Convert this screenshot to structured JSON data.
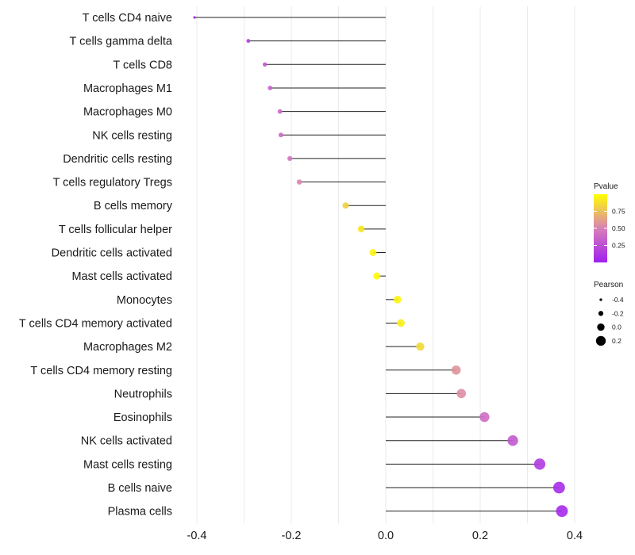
{
  "chart_data": {
    "type": "lollipop",
    "title": "",
    "xlabel": "",
    "ylabel": "",
    "xlim": [
      -0.42,
      0.42
    ],
    "x_ticks": [
      -0.4,
      -0.2,
      0.0,
      0.2,
      0.4
    ],
    "x_tick_labels": [
      "-0.4",
      "-0.2",
      "0.0",
      "0.2",
      "0.4"
    ],
    "minor_grid": [
      -0.3,
      -0.1,
      0.1,
      0.3
    ],
    "grid": true,
    "categories": [
      "T cells CD4 naive",
      "T cells gamma delta",
      "T cells CD8",
      "Macrophages M1",
      "Macrophages M0",
      "NK cells resting",
      "Dendritic cells resting",
      "T cells regulatory  Tregs",
      "B cells memory",
      "T cells follicular helper",
      "Dendritic cells activated",
      "Mast cells activated",
      "Monocytes",
      "T cells CD4 memory activated",
      "Macrophages M2",
      "T cells CD4 memory resting",
      "Neutrophils",
      "Eosinophils",
      "NK cells activated",
      "Mast cells resting",
      "B cells naive",
      "Plasma cells"
    ],
    "pearson": [
      -0.405,
      -0.291,
      -0.256,
      -0.245,
      -0.224,
      -0.222,
      -0.203,
      -0.183,
      -0.085,
      -0.052,
      -0.027,
      -0.019,
      0.025,
      0.032,
      0.073,
      0.149,
      0.16,
      0.209,
      0.269,
      0.326,
      0.367,
      0.373
    ],
    "pvalue": [
      0.02,
      0.18,
      0.3,
      0.32,
      0.38,
      0.38,
      0.44,
      0.52,
      0.82,
      0.9,
      0.96,
      0.98,
      0.96,
      0.94,
      0.85,
      0.58,
      0.56,
      0.4,
      0.3,
      0.14,
      0.06,
      0.05
    ],
    "legend": {
      "color": {
        "title": "Pvalue",
        "low_color": "#A020F0",
        "high_color": "#FFFF00",
        "range": [
          0.0,
          1.0
        ],
        "ticks": [
          0.25,
          0.5,
          0.75
        ],
        "tick_labels": [
          "0.25",
          "0.50",
          "0.75"
        ]
      },
      "size": {
        "title": "Pearson",
        "values": [
          -0.4,
          -0.2,
          0.0,
          0.2
        ],
        "labels": [
          "-0.4",
          "-0.2",
          "0.0",
          "0.2"
        ]
      },
      "placement": "right"
    }
  }
}
